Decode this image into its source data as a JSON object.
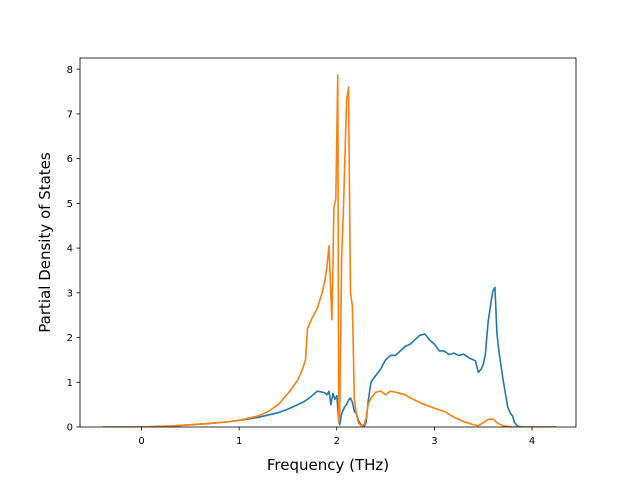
{
  "chart_data": {
    "type": "line",
    "xlabel": "Frequency (THz)",
    "ylabel": "Partial Density of States",
    "xlim": [
      -0.63,
      4.45
    ],
    "ylim": [
      0,
      8.25
    ],
    "x_ticks": [
      0,
      1,
      2,
      3,
      4
    ],
    "y_ticks": [
      0,
      1,
      2,
      3,
      4,
      5,
      6,
      7,
      8
    ],
    "grid": false,
    "series": [
      {
        "color": "#1f77b4",
        "x": [
          -0.4,
          0.0,
          0.3,
          0.5,
          0.7,
          0.9,
          1.0,
          1.1,
          1.2,
          1.3,
          1.4,
          1.5,
          1.55,
          1.6,
          1.65,
          1.7,
          1.72,
          1.8,
          1.85,
          1.88,
          1.9,
          1.92,
          1.94,
          1.96,
          1.98,
          2.0,
          2.02,
          2.03,
          2.05,
          2.08,
          2.1,
          2.12,
          2.14,
          2.16,
          2.18,
          2.2,
          2.22,
          2.25,
          2.28,
          2.3,
          2.32,
          2.35,
          2.38,
          2.4,
          2.45,
          2.5,
          2.55,
          2.6,
          2.7,
          2.75,
          2.8,
          2.85,
          2.9,
          2.95,
          3.0,
          3.05,
          3.1,
          3.15,
          3.2,
          3.25,
          3.3,
          3.35,
          3.38,
          3.42,
          3.45,
          3.48,
          3.5,
          3.52,
          3.55,
          3.58,
          3.6,
          3.62,
          3.64,
          3.66,
          3.7,
          3.75,
          3.78,
          3.8,
          3.82,
          3.85,
          3.9,
          4.0,
          4.1,
          4.2,
          4.25
        ],
        "y": [
          0,
          0,
          0.02,
          0.05,
          0.08,
          0.12,
          0.15,
          0.18,
          0.22,
          0.27,
          0.32,
          0.4,
          0.45,
          0.5,
          0.55,
          0.62,
          0.65,
          0.8,
          0.78,
          0.76,
          0.72,
          0.8,
          0.5,
          0.75,
          0.62,
          0.7,
          0.15,
          0.05,
          0.3,
          0.45,
          0.5,
          0.6,
          0.65,
          0.55,
          0.35,
          0.3,
          0.15,
          0.05,
          0.02,
          0.1,
          0.55,
          1.0,
          1.1,
          1.15,
          1.3,
          1.5,
          1.6,
          1.6,
          1.8,
          1.85,
          1.95,
          2.05,
          2.08,
          1.95,
          1.85,
          1.7,
          1.7,
          1.62,
          1.65,
          1.6,
          1.63,
          1.55,
          1.52,
          1.48,
          1.22,
          1.3,
          1.4,
          1.6,
          2.35,
          2.8,
          3.05,
          3.12,
          2.1,
          1.7,
          1.1,
          0.45,
          0.3,
          0.25,
          0.1,
          0.02,
          0,
          0,
          0,
          0,
          0
        ]
      },
      {
        "color": "#ff7f0e",
        "x": [
          -0.4,
          0.0,
          0.3,
          0.5,
          0.7,
          0.9,
          1.0,
          1.1,
          1.2,
          1.3,
          1.4,
          1.5,
          1.55,
          1.6,
          1.65,
          1.68,
          1.7,
          1.75,
          1.8,
          1.85,
          1.88,
          1.9,
          1.92,
          1.95,
          1.96,
          1.97,
          1.99,
          2.01,
          2.02,
          2.03,
          2.05,
          2.07,
          2.1,
          2.12,
          2.14,
          2.16,
          2.18,
          2.2,
          2.22,
          2.25,
          2.28,
          2.3,
          2.32,
          2.35,
          2.4,
          2.45,
          2.5,
          2.55,
          2.6,
          2.65,
          2.7,
          2.8,
          2.9,
          3.0,
          3.1,
          3.2,
          3.3,
          3.4,
          3.45,
          3.5,
          3.55,
          3.6,
          3.65,
          3.7,
          3.75,
          3.8,
          3.9,
          4.0,
          4.1,
          4.2,
          4.25
        ],
        "y": [
          0,
          0,
          0.02,
          0.05,
          0.08,
          0.12,
          0.15,
          0.2,
          0.25,
          0.35,
          0.5,
          0.75,
          0.9,
          1.05,
          1.3,
          1.5,
          2.2,
          2.45,
          2.65,
          3.0,
          3.3,
          3.6,
          4.05,
          2.4,
          3.5,
          4.9,
          5.1,
          7.87,
          0.1,
          0.3,
          3.8,
          5.0,
          7.3,
          7.6,
          3.0,
          2.7,
          0.6,
          0.3,
          0.1,
          0.03,
          0.05,
          0.2,
          0.5,
          0.65,
          0.78,
          0.8,
          0.72,
          0.8,
          0.78,
          0.75,
          0.72,
          0.6,
          0.5,
          0.42,
          0.35,
          0.22,
          0.12,
          0.05,
          0.03,
          0.1,
          0.17,
          0.18,
          0.08,
          0.03,
          0.01,
          0,
          0,
          0,
          0,
          0,
          0
        ]
      }
    ]
  }
}
